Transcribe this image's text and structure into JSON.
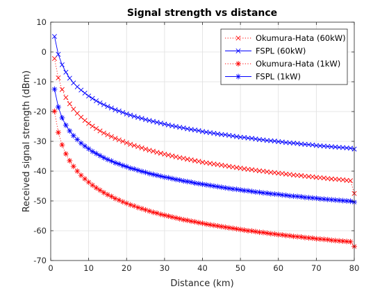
{
  "chart_data": {
    "type": "line",
    "title": "Signal strength vs distance",
    "xlabel": "Distance (km)",
    "ylabel": "Received signal strength (dBm)",
    "xlim": [
      0,
      80
    ],
    "ylim": [
      -70,
      10
    ],
    "xticks": [
      0,
      10,
      20,
      30,
      40,
      50,
      60,
      70,
      80
    ],
    "yticks": [
      -70,
      -60,
      -50,
      -40,
      -30,
      -20,
      -10,
      0,
      10
    ],
    "grid": true,
    "legend_position": "top-right",
    "x": [
      1,
      2,
      3,
      4,
      5,
      6,
      7,
      8,
      9,
      10,
      11,
      12,
      13,
      14,
      15,
      16,
      17,
      18,
      19,
      20,
      21,
      22,
      23,
      24,
      25,
      26,
      27,
      28,
      29,
      30,
      31,
      32,
      33,
      34,
      35,
      36,
      37,
      38,
      39,
      40,
      41,
      42,
      43,
      44,
      45,
      46,
      47,
      48,
      49,
      50,
      51,
      52,
      53,
      54,
      55,
      56,
      57,
      58,
      59,
      60,
      61,
      62,
      63,
      64,
      65,
      66,
      67,
      68,
      69,
      70,
      71,
      72,
      73,
      74,
      75,
      76,
      77,
      78,
      79,
      80
    ],
    "series": [
      {
        "name": "Okumura-Hata (60kW)",
        "color": "#ff0000",
        "line_style": "dotted",
        "marker": "x",
        "values": [
          -2.2,
          -8.7,
          -12.6,
          -15.3,
          -17.4,
          -19.2,
          -20.6,
          -21.9,
          -23.0,
          -24.0,
          -24.9,
          -25.7,
          -26.5,
          -27.2,
          -27.8,
          -28.4,
          -29.0,
          -29.5,
          -30.0,
          -30.5,
          -31.0,
          -31.4,
          -31.8,
          -32.2,
          -32.6,
          -33.0,
          -33.3,
          -33.7,
          -34.0,
          -34.3,
          -34.6,
          -34.9,
          -35.2,
          -35.5,
          -35.7,
          -36.0,
          -36.2,
          -36.5,
          -36.7,
          -37.0,
          -37.2,
          -37.4,
          -37.6,
          -37.8,
          -38.0,
          -38.2,
          -38.4,
          -38.6,
          -38.8,
          -39.0,
          -39.2,
          -39.4,
          -39.5,
          -39.7,
          -39.9,
          -40.0,
          -40.2,
          -40.4,
          -40.5,
          -40.7,
          -40.8,
          -41.0,
          -41.1,
          -41.3,
          -41.4,
          -41.5,
          -41.7,
          -41.8,
          -41.9,
          -42.1,
          -42.2,
          -42.3,
          -42.5,
          -42.6,
          -42.7,
          -42.8,
          -42.9,
          -43.1,
          -43.2,
          -47.5
        ]
      },
      {
        "name": "FSPL (60kW)",
        "color": "#0000ff",
        "line_style": "solid",
        "marker": "x",
        "values": [
          5.2,
          -0.8,
          -4.3,
          -6.8,
          -8.8,
          -10.4,
          -11.7,
          -12.8,
          -13.8,
          -14.8,
          -15.6,
          -16.4,
          -17.1,
          -17.7,
          -18.3,
          -18.8,
          -19.4,
          -19.8,
          -20.3,
          -20.8,
          -21.2,
          -21.6,
          -22.0,
          -22.3,
          -22.7,
          -23.0,
          -23.3,
          -23.6,
          -23.9,
          -24.2,
          -24.5,
          -24.8,
          -25.0,
          -25.3,
          -25.5,
          -25.8,
          -26.0,
          -26.2,
          -26.4,
          -26.7,
          -26.9,
          -27.1,
          -27.3,
          -27.5,
          -27.7,
          -27.8,
          -28.0,
          -28.2,
          -28.4,
          -28.6,
          -28.7,
          -28.9,
          -29.0,
          -29.2,
          -29.4,
          -29.5,
          -29.7,
          -29.8,
          -29.9,
          -30.1,
          -30.2,
          -30.4,
          -30.5,
          -30.6,
          -30.7,
          -30.9,
          -31.0,
          -31.1,
          -31.2,
          -31.4,
          -31.5,
          -31.6,
          -31.7,
          -31.8,
          -31.9,
          -32.0,
          -32.1,
          -32.2,
          -32.3,
          -32.6
        ]
      },
      {
        "name": "Okumura-Hata (1kW)",
        "color": "#ff0000",
        "line_style": "dotted",
        "marker": "*",
        "values": [
          -19.9,
          -27.0,
          -31.2,
          -34.2,
          -36.5,
          -38.4,
          -40.0,
          -41.4,
          -42.6,
          -43.7,
          -44.7,
          -45.6,
          -46.4,
          -47.2,
          -47.9,
          -48.5,
          -49.2,
          -49.7,
          -50.3,
          -50.8,
          -51.3,
          -51.7,
          -52.2,
          -52.6,
          -53.0,
          -53.4,
          -53.8,
          -54.1,
          -54.5,
          -54.8,
          -55.1,
          -55.4,
          -55.7,
          -56.0,
          -56.3,
          -56.5,
          -56.8,
          -57.0,
          -57.3,
          -57.5,
          -57.8,
          -58.0,
          -58.2,
          -58.4,
          -58.6,
          -58.8,
          -59.0,
          -59.2,
          -59.4,
          -59.6,
          -59.8,
          -60.0,
          -60.1,
          -60.3,
          -60.5,
          -60.6,
          -60.8,
          -61.0,
          -61.1,
          -61.3,
          -61.4,
          -61.6,
          -61.7,
          -61.9,
          -62.0,
          -62.1,
          -62.3,
          -62.4,
          -62.5,
          -62.7,
          -62.8,
          -62.9,
          -63.0,
          -63.2,
          -63.3,
          -63.4,
          -63.5,
          -63.6,
          -63.7,
          -65.3
        ]
      },
      {
        "name": "FSPL (1kW)",
        "color": "#0000ff",
        "line_style": "solid",
        "marker": "*",
        "values": [
          -12.5,
          -18.5,
          -22.1,
          -24.6,
          -26.5,
          -28.1,
          -29.4,
          -30.6,
          -31.6,
          -32.5,
          -33.4,
          -34.1,
          -34.8,
          -35.5,
          -36.1,
          -36.6,
          -37.2,
          -37.6,
          -38.1,
          -38.5,
          -39.0,
          -39.3,
          -39.7,
          -40.1,
          -40.4,
          -40.8,
          -41.1,
          -41.4,
          -41.7,
          -42.0,
          -42.2,
          -42.5,
          -42.8,
          -43.0,
          -43.3,
          -43.5,
          -43.7,
          -44.0,
          -44.2,
          -44.4,
          -44.6,
          -44.8,
          -45.0,
          -45.2,
          -45.4,
          -45.6,
          -45.8,
          -46.0,
          -46.1,
          -46.3,
          -46.5,
          -46.6,
          -46.8,
          -47.0,
          -47.1,
          -47.3,
          -47.4,
          -47.6,
          -47.7,
          -47.8,
          -48.0,
          -48.1,
          -48.3,
          -48.4,
          -48.5,
          -48.6,
          -48.8,
          -48.9,
          -49.0,
          -49.1,
          -49.3,
          -49.4,
          -49.5,
          -49.6,
          -49.7,
          -49.8,
          -49.9,
          -50.0,
          -50.1,
          -50.4
        ]
      }
    ]
  }
}
